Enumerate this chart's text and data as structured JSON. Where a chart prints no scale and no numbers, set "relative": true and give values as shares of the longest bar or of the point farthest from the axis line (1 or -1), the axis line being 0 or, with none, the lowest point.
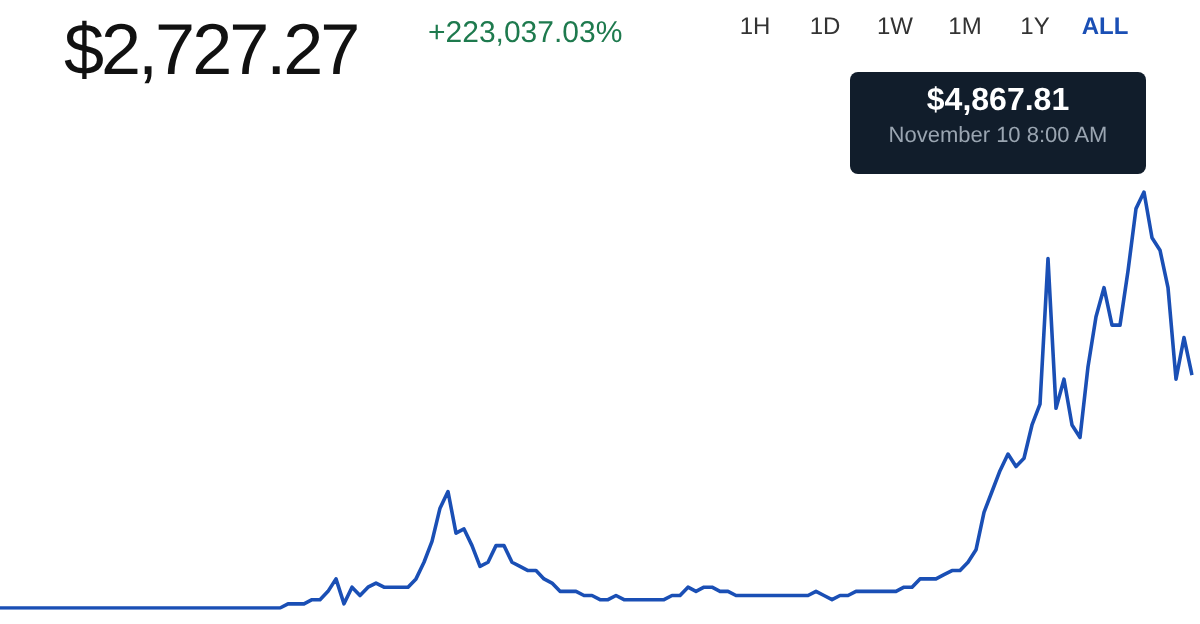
{
  "chart_data": {
    "type": "line",
    "title": "$2,727.27",
    "subtitle": "+223,037.03%",
    "relative": true,
    "legend": false,
    "marker": "none",
    "annotations": [
      "1H",
      "1D",
      "1W",
      "1M",
      "1Y",
      "ALL",
      "$4,867.81",
      "November 10 8:00 AM"
    ],
    "categories": [
      null,
      null,
      null,
      null,
      null,
      null,
      null,
      null,
      null,
      null,
      null,
      null,
      null,
      null,
      null,
      null,
      null,
      null,
      null,
      null,
      null,
      null,
      null,
      null,
      null,
      null,
      null,
      null,
      null,
      null,
      null,
      null,
      null,
      null,
      null,
      null,
      null,
      null,
      null,
      null,
      null,
      null,
      null,
      null,
      null,
      null,
      null,
      null,
      null,
      null,
      null,
      null,
      null,
      null,
      null,
      null,
      null,
      null,
      null,
      null,
      null,
      null,
      null,
      null,
      null,
      null,
      null,
      null,
      null,
      null,
      null,
      null,
      null,
      null,
      null,
      null,
      null,
      null,
      null,
      null,
      null,
      null,
      null,
      null,
      null,
      null,
      null,
      null,
      null,
      null,
      null,
      null,
      null,
      null,
      null,
      null,
      null,
      null,
      null,
      null,
      null,
      null,
      null,
      null,
      null,
      null,
      null,
      null,
      null,
      null,
      null,
      null,
      null,
      null,
      null,
      null,
      null,
      null,
      null,
      null,
      null,
      null,
      null,
      null,
      null,
      null,
      null,
      null,
      null,
      null,
      null,
      null,
      null,
      null,
      null,
      null,
      null,
      null,
      null,
      null,
      null,
      null,
      null,
      null,
      null,
      null,
      null,
      null,
      null,
      null
    ],
    "series": [
      {
        "color": "#1a4fb5",
        "values": [
          0,
          0,
          0,
          0,
          0,
          0,
          0,
          0,
          0,
          0,
          0,
          0,
          0,
          0,
          0,
          0,
          0,
          0,
          0,
          0,
          0,
          0,
          0,
          0,
          0,
          0,
          0,
          0,
          0,
          0,
          0,
          0,
          0,
          0,
          0,
          0,
          0.01,
          0.01,
          0.01,
          0.02,
          0.02,
          0.04,
          0.07,
          0.01,
          0.05,
          0.03,
          0.05,
          0.06,
          0.05,
          0.05,
          0.05,
          0.05,
          0.07,
          0.11,
          0.16,
          0.24,
          0.28,
          0.18,
          0.19,
          0.15,
          0.1,
          0.11,
          0.15,
          0.15,
          0.11,
          0.1,
          0.09,
          0.09,
          0.07,
          0.06,
          0.04,
          0.04,
          0.04,
          0.03,
          0.03,
          0.02,
          0.02,
          0.03,
          0.02,
          0.02,
          0.02,
          0.02,
          0.02,
          0.02,
          0.03,
          0.03,
          0.05,
          0.04,
          0.05,
          0.05,
          0.04,
          0.04,
          0.03,
          0.03,
          0.03,
          0.03,
          0.03,
          0.03,
          0.03,
          0.03,
          0.03,
          0.03,
          0.04,
          0.03,
          0.02,
          0.03,
          0.03,
          0.04,
          0.04,
          0.04,
          0.04,
          0.04,
          0.04,
          0.05,
          0.05,
          0.07,
          0.07,
          0.07,
          0.08,
          0.09,
          0.09,
          0.11,
          0.14,
          0.23,
          0.28,
          0.33,
          0.37,
          0.34,
          0.36,
          0.44,
          0.49,
          0.84,
          0.48,
          0.55,
          0.44,
          0.41,
          0.58,
          0.7,
          0.77,
          0.68,
          0.68,
          0.81,
          0.96,
          1,
          0.89,
          0.86,
          0.77,
          0.55,
          0.65,
          0.56
        ]
      }
    ]
  }
}
